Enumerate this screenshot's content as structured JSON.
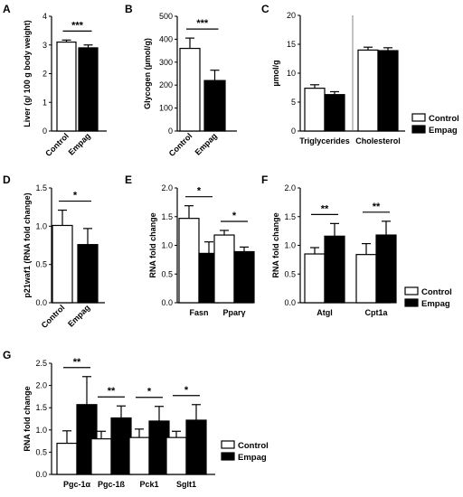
{
  "figure": {
    "colors": {
      "control": "#ffffff",
      "empag": "#000000",
      "stroke": "#000000"
    },
    "legend": {
      "control": "Control",
      "empag": "Empag"
    }
  },
  "chart_data": [
    {
      "panel": "A",
      "type": "bar",
      "ylabel": "Liver (g/ 100 g body weight)",
      "ylim": [
        0,
        4
      ],
      "yticks": [
        0,
        1,
        2,
        3,
        4
      ],
      "categories": [
        "Control",
        "Empag"
      ],
      "series": [
        {
          "name": "",
          "values": [
            3.1,
            2.9
          ],
          "errors": [
            0.07,
            0.1
          ]
        }
      ],
      "significance": [
        {
          "text": "***"
        }
      ],
      "legend": null
    },
    {
      "panel": "B",
      "type": "bar",
      "ylabel": "Glycogen (µmol/g)",
      "ylim": [
        0,
        500
      ],
      "yticks": [
        0,
        100,
        200,
        300,
        400,
        500
      ],
      "categories": [
        "Control",
        "Empag"
      ],
      "series": [
        {
          "name": "",
          "values": [
            360,
            220
          ],
          "errors": [
            45,
            45
          ]
        }
      ],
      "significance": [
        {
          "text": "***"
        }
      ],
      "legend": null
    },
    {
      "panel": "C",
      "type": "bar",
      "ylabel": "µmol/g",
      "ylim": [
        0,
        20
      ],
      "yticks": [
        0,
        5,
        10,
        15,
        20
      ],
      "categories": [
        "Triglycerides",
        "Cholesterol"
      ],
      "series": [
        {
          "name": "Control",
          "values": [
            7.4,
            14.0
          ],
          "errors": [
            0.6,
            0.5
          ]
        },
        {
          "name": "Empag",
          "values": [
            6.3,
            13.9
          ],
          "errors": [
            0.5,
            0.5
          ]
        }
      ],
      "significance": [],
      "legend": "right"
    },
    {
      "panel": "D",
      "type": "bar",
      "ylabel": "p21waf1 (RNA fold change)",
      "ylim": [
        0,
        1.5
      ],
      "yticks": [
        0.0,
        0.5,
        1.0,
        1.5
      ],
      "categories": [
        "Control",
        "Empag"
      ],
      "series": [
        {
          "name": "",
          "values": [
            1.01,
            0.76
          ],
          "errors": [
            0.2,
            0.21
          ]
        }
      ],
      "significance": [
        {
          "text": "*"
        }
      ],
      "legend": null
    },
    {
      "panel": "E",
      "type": "bar",
      "ylabel": "RNA fold change",
      "ylim": [
        0,
        2.0
      ],
      "yticks": [
        0.0,
        0.5,
        1.0,
        1.5,
        2.0
      ],
      "categories": [
        "Fasn",
        "Pparγ"
      ],
      "series": [
        {
          "name": "Control",
          "values": [
            1.47,
            1.18
          ],
          "errors": [
            0.22,
            0.08
          ]
        },
        {
          "name": "Empag",
          "values": [
            0.86,
            0.89
          ],
          "errors": [
            0.2,
            0.08
          ]
        }
      ],
      "significance": [
        {
          "text": "*"
        },
        {
          "text": "*"
        }
      ],
      "legend": null
    },
    {
      "panel": "F",
      "type": "bar",
      "ylabel": "RNA fold change",
      "ylim": [
        0,
        2.0
      ],
      "yticks": [
        0.0,
        0.5,
        1.0,
        1.5,
        2.0
      ],
      "categories": [
        "Atgl",
        "Cpt1a"
      ],
      "series": [
        {
          "name": "Control",
          "values": [
            0.85,
            0.84
          ],
          "errors": [
            0.11,
            0.19
          ]
        },
        {
          "name": "Empag",
          "values": [
            1.16,
            1.18
          ],
          "errors": [
            0.22,
            0.24
          ]
        }
      ],
      "significance": [
        {
          "text": "**"
        },
        {
          "text": "**"
        }
      ],
      "legend": "right"
    },
    {
      "panel": "G",
      "type": "bar",
      "ylabel": "RNA fold change",
      "ylim": [
        0,
        2.5
      ],
      "yticks": [
        0.0,
        0.5,
        1.0,
        1.5,
        2.0,
        2.5
      ],
      "categories": [
        "Pgc-1α",
        "Pgc-1ß",
        "Pck1",
        "Sglt1"
      ],
      "series": [
        {
          "name": "Control",
          "values": [
            0.7,
            0.8,
            0.83,
            0.83
          ],
          "errors": [
            0.28,
            0.17,
            0.19,
            0.14
          ]
        },
        {
          "name": "Empag",
          "values": [
            1.57,
            1.27,
            1.2,
            1.22
          ],
          "errors": [
            0.63,
            0.27,
            0.33,
            0.35
          ]
        }
      ],
      "significance": [
        {
          "text": "**"
        },
        {
          "text": "**"
        },
        {
          "text": "*"
        },
        {
          "text": "*"
        }
      ],
      "legend": "right"
    }
  ]
}
